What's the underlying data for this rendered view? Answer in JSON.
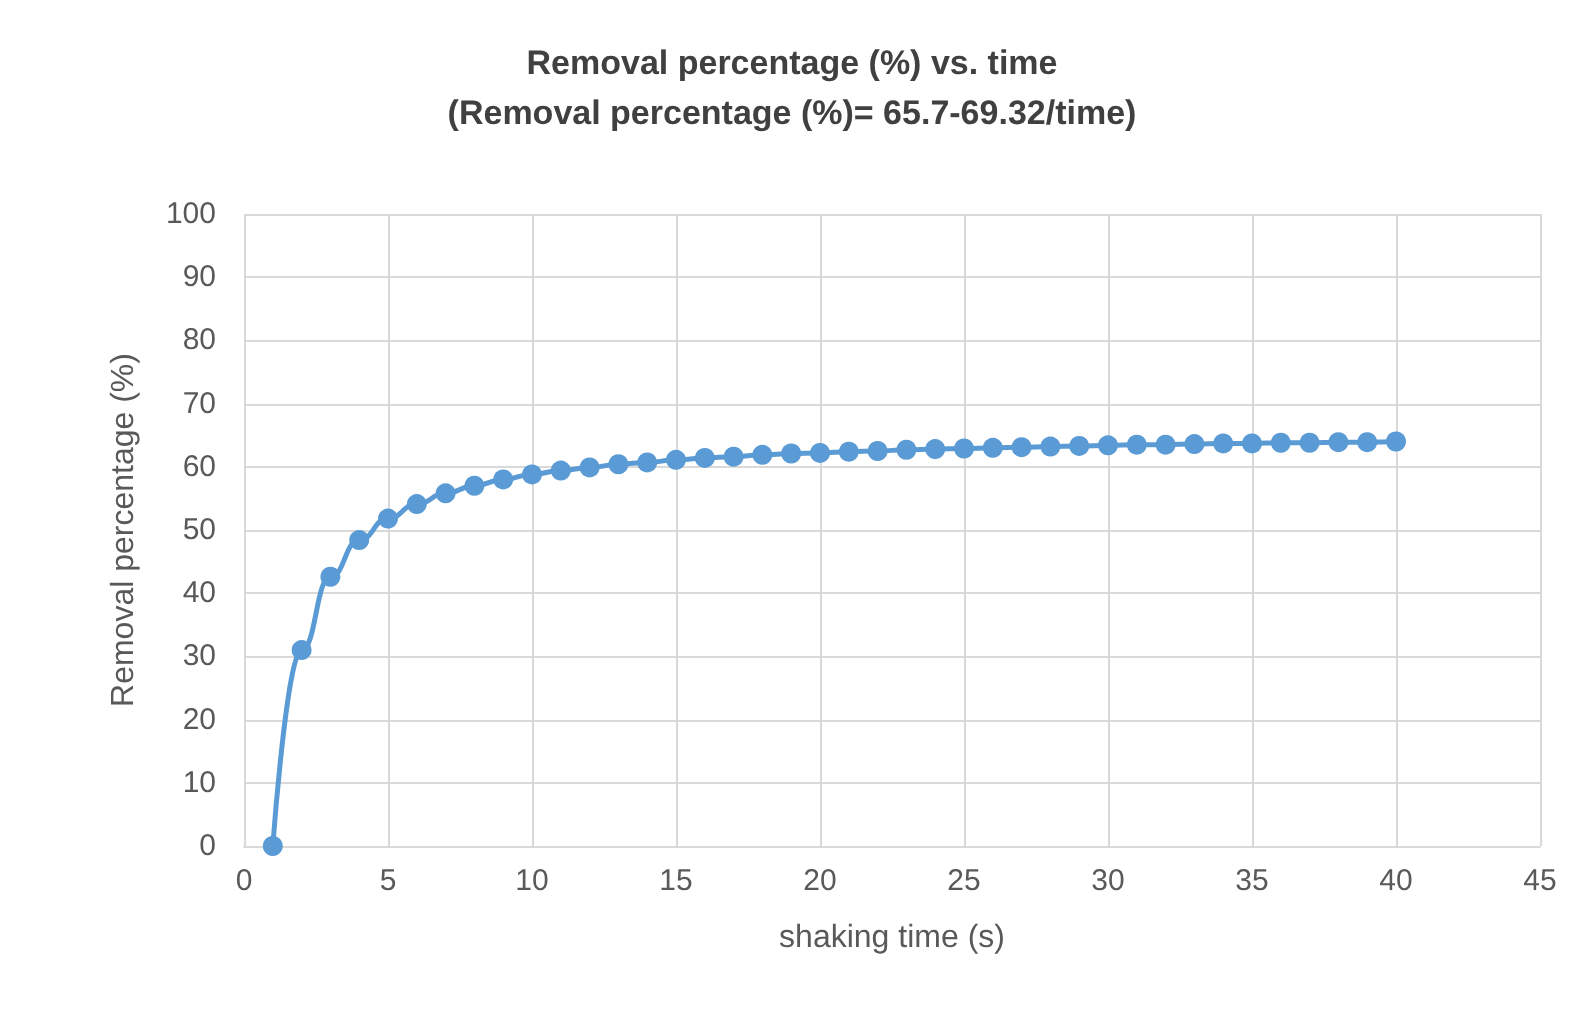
{
  "chart_data": {
    "type": "line",
    "title": "Removal percentage (%) vs. time",
    "subtitle": "(Removal percentage (%)= 65.7-69.32/time)",
    "xlabel": "shaking time (s)",
    "ylabel": "Removal percentage (%)",
    "x": [
      1,
      2,
      3,
      4,
      5,
      6,
      7,
      8,
      9,
      10,
      11,
      12,
      13,
      14,
      15,
      16,
      17,
      18,
      19,
      20,
      21,
      22,
      23,
      24,
      25,
      26,
      27,
      28,
      29,
      30,
      31,
      32,
      33,
      34,
      35,
      36,
      37,
      38,
      39,
      40
    ],
    "series": [
      {
        "color": "#5b9bd5",
        "values": [
          0,
          31,
          42.6,
          48.4,
          51.8,
          54.1,
          55.8,
          57,
          58,
          58.8,
          59.4,
          59.9,
          60.4,
          60.7,
          61.1,
          61.4,
          61.6,
          61.9,
          62.1,
          62.2,
          62.4,
          62.5,
          62.7,
          62.8,
          62.9,
          63,
          63.1,
          63.2,
          63.3,
          63.4,
          63.5,
          63.5,
          63.6,
          63.7,
          63.7,
          63.8,
          63.8,
          63.9,
          63.9,
          64
        ]
      }
    ],
    "xlim": [
      0,
      45
    ],
    "xticks": [
      0,
      5,
      10,
      15,
      20,
      25,
      30,
      35,
      40,
      45
    ],
    "ylim": [
      0,
      100
    ],
    "yticks": [
      0,
      10,
      20,
      30,
      40,
      50,
      60,
      70,
      80,
      90,
      100
    ],
    "grid": true,
    "marker": "circle",
    "line_style": "solid"
  }
}
